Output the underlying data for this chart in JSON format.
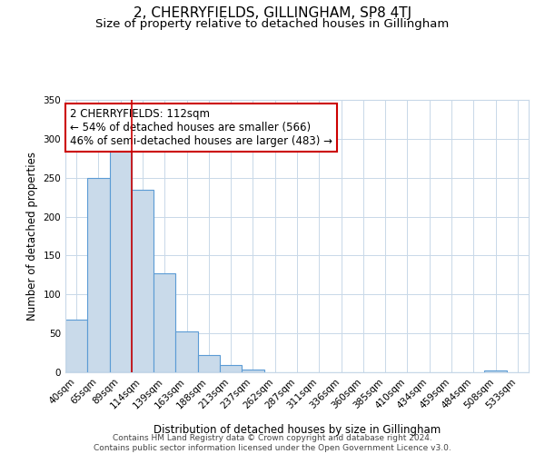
{
  "title": "2, CHERRYFIELDS, GILLINGHAM, SP8 4TJ",
  "subtitle": "Size of property relative to detached houses in Gillingham",
  "xlabel": "Distribution of detached houses by size in Gillingham",
  "ylabel": "Number of detached properties",
  "bar_labels": [
    "40sqm",
    "65sqm",
    "89sqm",
    "114sqm",
    "139sqm",
    "163sqm",
    "188sqm",
    "213sqm",
    "237sqm",
    "262sqm",
    "287sqm",
    "311sqm",
    "336sqm",
    "360sqm",
    "385sqm",
    "410sqm",
    "434sqm",
    "459sqm",
    "484sqm",
    "508sqm",
    "533sqm"
  ],
  "bar_values": [
    68,
    250,
    288,
    235,
    127,
    53,
    22,
    9,
    4,
    0,
    0,
    0,
    0,
    0,
    0,
    0,
    0,
    0,
    0,
    2,
    0
  ],
  "bar_color": "#c9daea",
  "bar_edge_color": "#5b9bd5",
  "bar_edge_width": 0.8,
  "vline_x_index": 2,
  "vline_color": "#cc0000",
  "annotation_title": "2 CHERRYFIELDS: 112sqm",
  "annotation_line1": "← 54% of detached houses are smaller (566)",
  "annotation_line2": "46% of semi-detached houses are larger (483) →",
  "annotation_box_color": "#ffffff",
  "annotation_box_edge_color": "#cc0000",
  "ylim": [
    0,
    350
  ],
  "yticks": [
    0,
    50,
    100,
    150,
    200,
    250,
    300,
    350
  ],
  "footer_line1": "Contains HM Land Registry data © Crown copyright and database right 2024.",
  "footer_line2": "Contains public sector information licensed under the Open Government Licence v3.0.",
  "background_color": "#ffffff",
  "grid_color": "#c8d8e8",
  "title_fontsize": 11,
  "subtitle_fontsize": 9.5,
  "axis_label_fontsize": 8.5,
  "tick_fontsize": 7.5,
  "annotation_fontsize": 8.5,
  "footer_fontsize": 6.5
}
